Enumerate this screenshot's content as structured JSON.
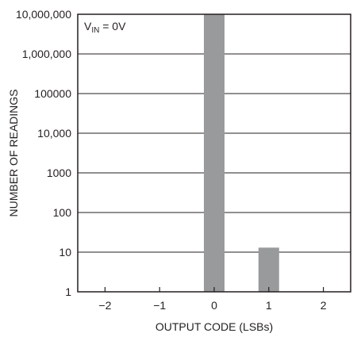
{
  "chart_data": {
    "type": "bar",
    "x_ticks": [
      "−2",
      "−1",
      "0",
      "1",
      "2"
    ],
    "x": [
      -2,
      -1,
      0,
      1,
      2
    ],
    "values": [
      0,
      0,
      10000000,
      13,
      0
    ],
    "y_scale": "log",
    "ylim": [
      1,
      10000000
    ],
    "y_ticks": [
      1,
      10,
      100,
      1000,
      10000,
      100000,
      1000000,
      10000000
    ],
    "y_tick_labels": [
      "1",
      "10",
      "100",
      "1000",
      "10,000",
      "100000",
      "1,000,000",
      "10,000,000"
    ],
    "xlabel": "OUTPUT CODE (LSBs)",
    "ylabel": "NUMBER OF READINGS",
    "annotation": {
      "prefix": "V",
      "subscript": "IN",
      "suffix": " = 0V"
    },
    "grid": "horizontal",
    "colors": {
      "bar": "#999a9c",
      "axis": "#231f20",
      "grid": "#231f20"
    }
  }
}
